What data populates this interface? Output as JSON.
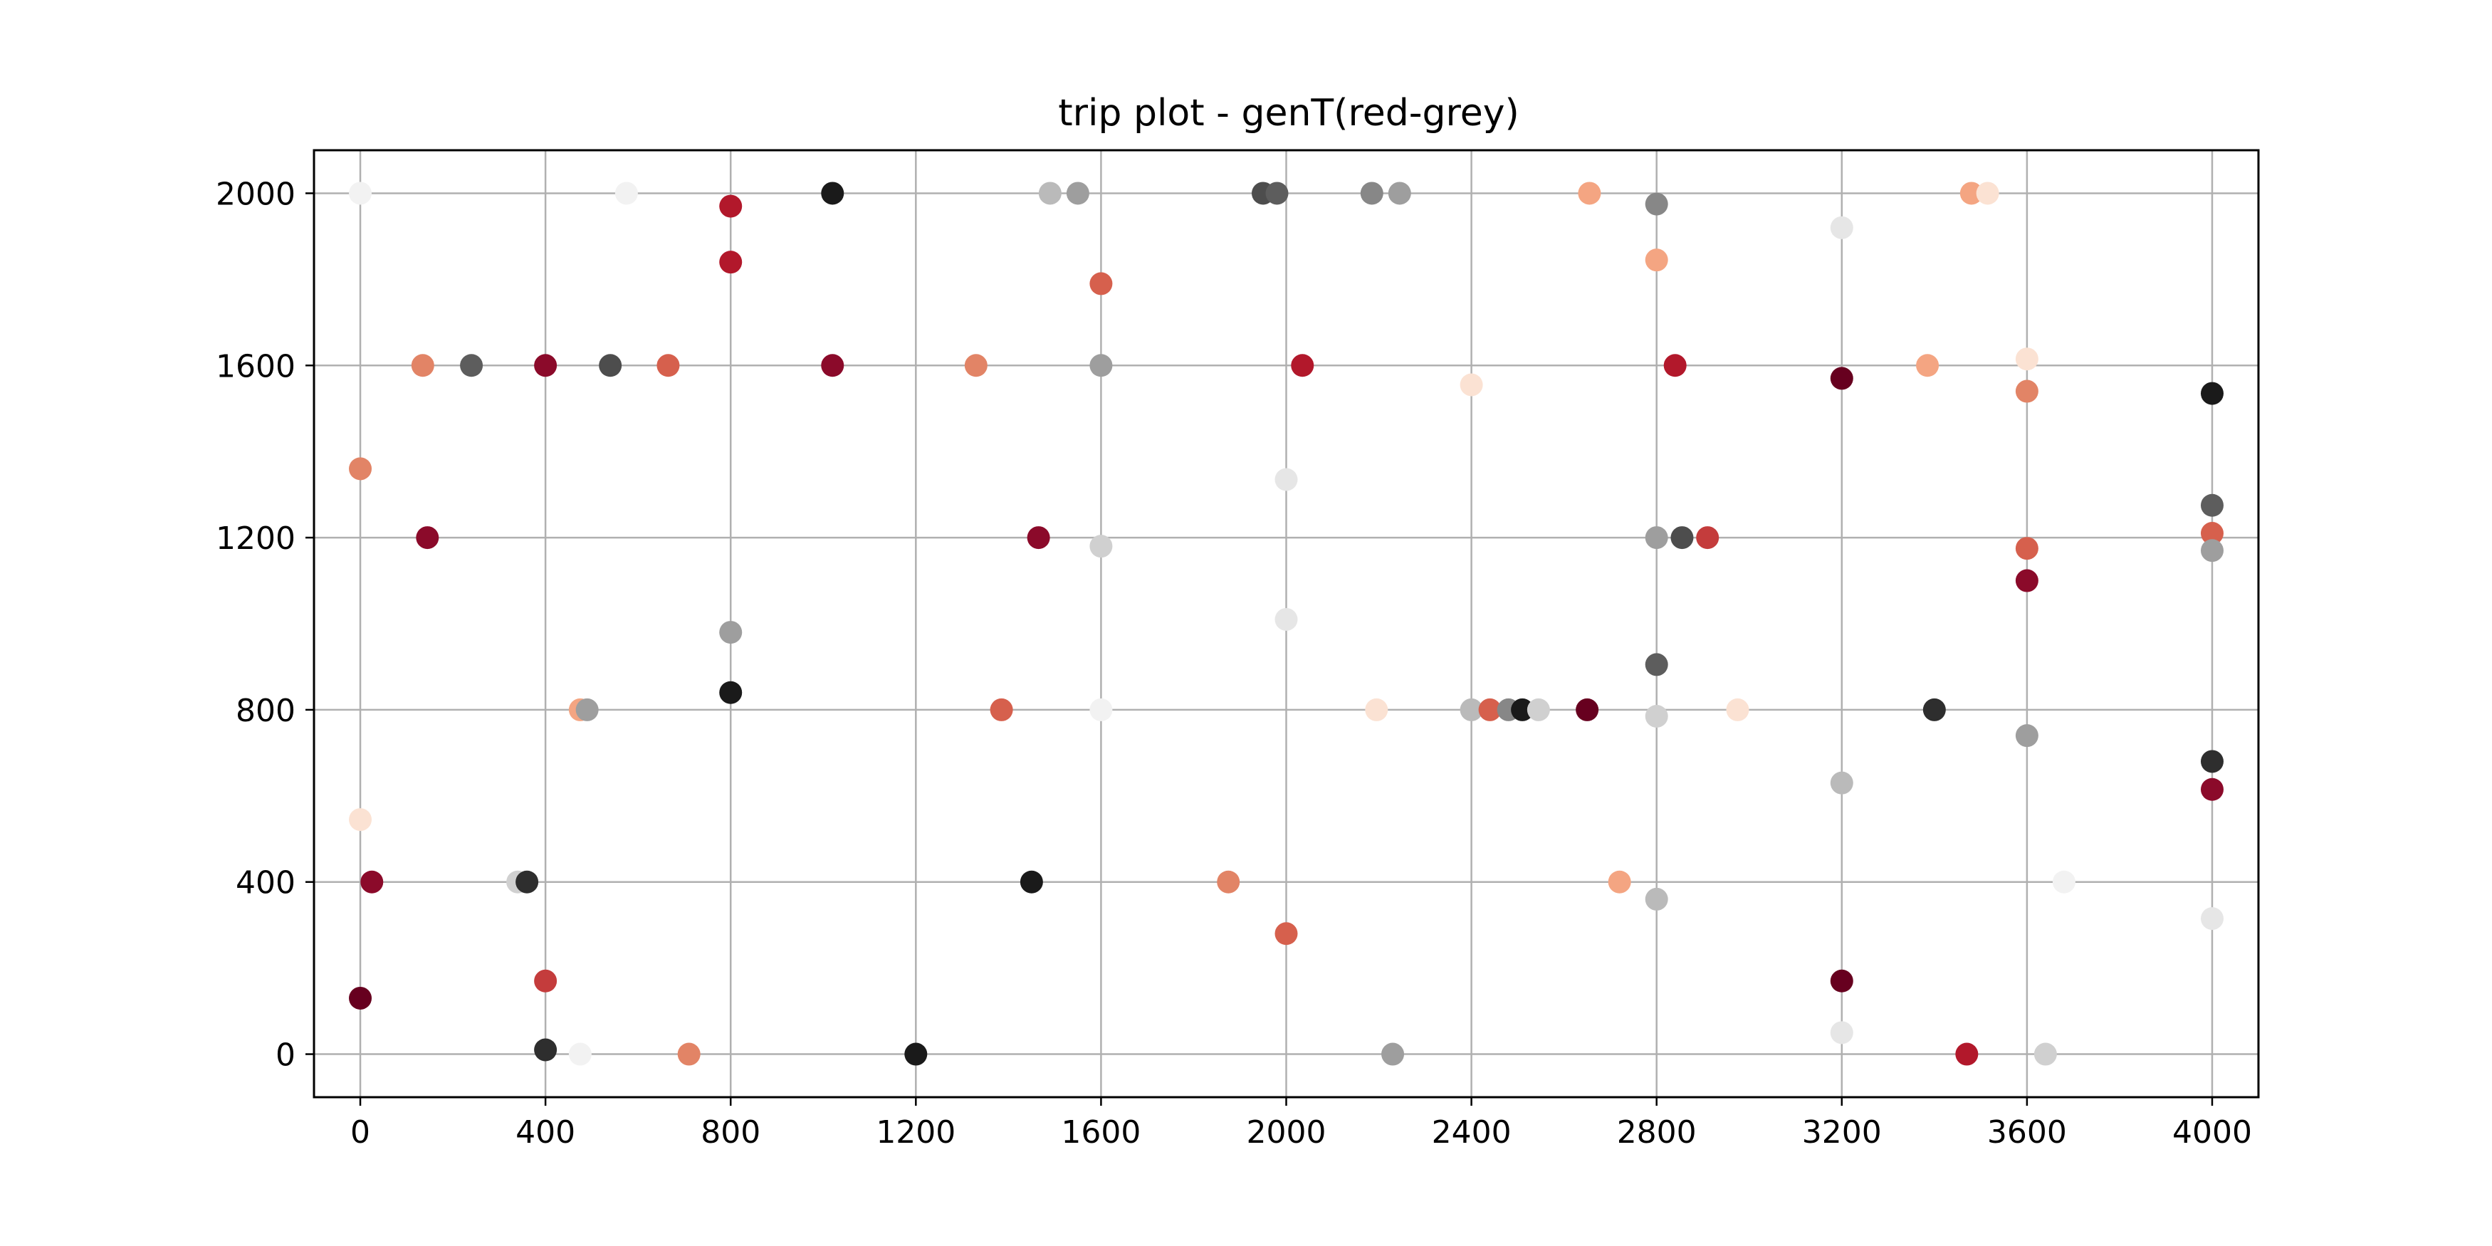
{
  "chart_data": {
    "type": "scatter",
    "title": "trip plot - genT(red-grey)",
    "xlabel": "",
    "ylabel": "",
    "xlim": [
      -100,
      4100
    ],
    "ylim": [
      -100,
      2100
    ],
    "grid": true,
    "legend": "none",
    "colormap": "RdGy",
    "xticks": [
      0,
      400,
      800,
      1200,
      1600,
      2000,
      2400,
      2800,
      3200,
      3600,
      4000
    ],
    "yticks": [
      0,
      400,
      800,
      1200,
      1600,
      2000
    ],
    "colors": {
      "c1": "#67001f",
      "c2": "#8b0a2a",
      "c3": "#b2182b",
      "c4": "#c43c3c",
      "c5": "#d6604d",
      "c6": "#e28466",
      "c7": "#f4a582",
      "c8": "#fbe2d3",
      "c9": "#f2f2f2",
      "g1": "#e6e6e6",
      "g2": "#d0d0d0",
      "g3": "#bababa",
      "g4": "#9e9e9e",
      "g5": "#878787",
      "g6": "#5d5d5d",
      "g7": "#4d4d4d",
      "g8": "#2e2e2e",
      "g9": "#1a1a1a"
    },
    "points": [
      {
        "x": 0,
        "y": 2000,
        "c": "c9"
      },
      {
        "x": 575,
        "y": 2000,
        "c": "c9"
      },
      {
        "x": 800,
        "y": 1970,
        "c": "c3"
      },
      {
        "x": 1020,
        "y": 2000,
        "c": "g9"
      },
      {
        "x": 1490,
        "y": 2000,
        "c": "g3"
      },
      {
        "x": 1550,
        "y": 2000,
        "c": "g4"
      },
      {
        "x": 1950,
        "y": 2000,
        "c": "g7"
      },
      {
        "x": 1980,
        "y": 2000,
        "c": "g6"
      },
      {
        "x": 2185,
        "y": 2000,
        "c": "g5"
      },
      {
        "x": 2245,
        "y": 2000,
        "c": "g4"
      },
      {
        "x": 2655,
        "y": 2000,
        "c": "c7"
      },
      {
        "x": 2800,
        "y": 1975,
        "c": "g5"
      },
      {
        "x": 3480,
        "y": 2000,
        "c": "c7"
      },
      {
        "x": 3515,
        "y": 2000,
        "c": "c8"
      },
      {
        "x": 3200,
        "y": 1920,
        "c": "g1"
      },
      {
        "x": 800,
        "y": 1840,
        "c": "c3"
      },
      {
        "x": 1600,
        "y": 1790,
        "c": "c5"
      },
      {
        "x": 2800,
        "y": 1845,
        "c": "c7"
      },
      {
        "x": 135,
        "y": 1600,
        "c": "c6"
      },
      {
        "x": 240,
        "y": 1600,
        "c": "g6"
      },
      {
        "x": 400,
        "y": 1600,
        "c": "c2"
      },
      {
        "x": 540,
        "y": 1600,
        "c": "g7"
      },
      {
        "x": 665,
        "y": 1600,
        "c": "c5"
      },
      {
        "x": 1020,
        "y": 1600,
        "c": "c2"
      },
      {
        "x": 1330,
        "y": 1600,
        "c": "c6"
      },
      {
        "x": 1600,
        "y": 1600,
        "c": "g4"
      },
      {
        "x": 2035,
        "y": 1600,
        "c": "c3"
      },
      {
        "x": 2840,
        "y": 1600,
        "c": "c3"
      },
      {
        "x": 3385,
        "y": 1600,
        "c": "c7"
      },
      {
        "x": 3600,
        "y": 1615,
        "c": "c8"
      },
      {
        "x": 3200,
        "y": 1570,
        "c": "c1"
      },
      {
        "x": 2400,
        "y": 1555,
        "c": "c8"
      },
      {
        "x": 3600,
        "y": 1540,
        "c": "c6"
      },
      {
        "x": 4000,
        "y": 1535,
        "c": "g9"
      },
      {
        "x": 0,
        "y": 1360,
        "c": "c6"
      },
      {
        "x": 2000,
        "y": 1335,
        "c": "g1"
      },
      {
        "x": 4000,
        "y": 1275,
        "c": "g6"
      },
      {
        "x": 145,
        "y": 1200,
        "c": "c2"
      },
      {
        "x": 1465,
        "y": 1200,
        "c": "c2"
      },
      {
        "x": 1600,
        "y": 1180,
        "c": "g2"
      },
      {
        "x": 2800,
        "y": 1200,
        "c": "g4"
      },
      {
        "x": 2855,
        "y": 1200,
        "c": "g7"
      },
      {
        "x": 2910,
        "y": 1200,
        "c": "c4"
      },
      {
        "x": 3600,
        "y": 1175,
        "c": "c5"
      },
      {
        "x": 4000,
        "y": 1210,
        "c": "c5"
      },
      {
        "x": 4000,
        "y": 1170,
        "c": "g4"
      },
      {
        "x": 3600,
        "y": 1100,
        "c": "c2"
      },
      {
        "x": 2000,
        "y": 1010,
        "c": "g1"
      },
      {
        "x": 800,
        "y": 980,
        "c": "g4"
      },
      {
        "x": 2800,
        "y": 905,
        "c": "g6"
      },
      {
        "x": 800,
        "y": 840,
        "c": "g9"
      },
      {
        "x": 475,
        "y": 800,
        "c": "c7"
      },
      {
        "x": 490,
        "y": 800,
        "c": "g4"
      },
      {
        "x": 1385,
        "y": 800,
        "c": "c5"
      },
      {
        "x": 1600,
        "y": 800,
        "c": "c9"
      },
      {
        "x": 2195,
        "y": 800,
        "c": "c8"
      },
      {
        "x": 2400,
        "y": 800,
        "c": "g3"
      },
      {
        "x": 2440,
        "y": 800,
        "c": "c5"
      },
      {
        "x": 2480,
        "y": 800,
        "c": "g5"
      },
      {
        "x": 2510,
        "y": 800,
        "c": "g9"
      },
      {
        "x": 2545,
        "y": 800,
        "c": "g2"
      },
      {
        "x": 2650,
        "y": 800,
        "c": "c1"
      },
      {
        "x": 2800,
        "y": 785,
        "c": "g2"
      },
      {
        "x": 2975,
        "y": 800,
        "c": "c8"
      },
      {
        "x": 3400,
        "y": 800,
        "c": "g8"
      },
      {
        "x": 3600,
        "y": 740,
        "c": "g4"
      },
      {
        "x": 4000,
        "y": 680,
        "c": "g8"
      },
      {
        "x": 3200,
        "y": 630,
        "c": "g3"
      },
      {
        "x": 4000,
        "y": 615,
        "c": "c2"
      },
      {
        "x": 0,
        "y": 545,
        "c": "c8"
      },
      {
        "x": 25,
        "y": 400,
        "c": "c2"
      },
      {
        "x": 340,
        "y": 400,
        "c": "g2"
      },
      {
        "x": 360,
        "y": 400,
        "c": "g8"
      },
      {
        "x": 1450,
        "y": 400,
        "c": "g9"
      },
      {
        "x": 1875,
        "y": 400,
        "c": "c6"
      },
      {
        "x": 2720,
        "y": 400,
        "c": "c7"
      },
      {
        "x": 2800,
        "y": 360,
        "c": "g3"
      },
      {
        "x": 3680,
        "y": 400,
        "c": "c9"
      },
      {
        "x": 4000,
        "y": 315,
        "c": "g1"
      },
      {
        "x": 2000,
        "y": 280,
        "c": "c5"
      },
      {
        "x": 400,
        "y": 170,
        "c": "c4"
      },
      {
        "x": 3200,
        "y": 170,
        "c": "c1"
      },
      {
        "x": 0,
        "y": 130,
        "c": "c1"
      },
      {
        "x": 3200,
        "y": 50,
        "c": "g1"
      },
      {
        "x": 400,
        "y": 10,
        "c": "g8"
      },
      {
        "x": 475,
        "y": 0,
        "c": "c9"
      },
      {
        "x": 710,
        "y": 0,
        "c": "c6"
      },
      {
        "x": 1200,
        "y": 0,
        "c": "g9"
      },
      {
        "x": 2230,
        "y": 0,
        "c": "g4"
      },
      {
        "x": 3470,
        "y": 0,
        "c": "c3"
      },
      {
        "x": 3640,
        "y": 0,
        "c": "g2"
      }
    ]
  }
}
